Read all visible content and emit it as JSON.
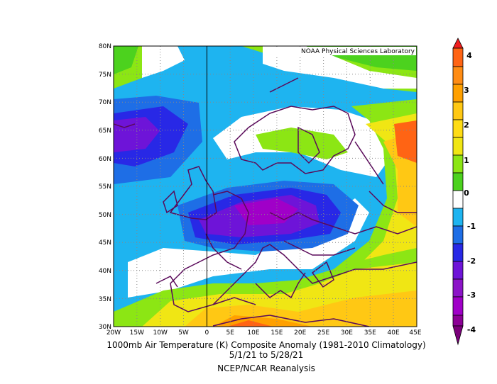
{
  "map": {
    "credit": "NOAA Physical Sciences Laboratory",
    "lon_range": [
      -20,
      45
    ],
    "lat_range": [
      30,
      80
    ],
    "lat_ticks": [
      "80N",
      "75N",
      "70N",
      "65N",
      "60N",
      "55N",
      "50N",
      "45N",
      "40N",
      "35N",
      "30N"
    ],
    "lon_ticks": [
      "20W",
      "15W",
      "10W",
      "5W",
      "0",
      "5E",
      "10E",
      "15E",
      "20E",
      "25E",
      "30E",
      "35E",
      "40E",
      "45E"
    ],
    "grid": "dotted"
  },
  "caption": {
    "line1": "1000mb Air Temperature (K) Composite Anomaly (1981-2010 Climatology)",
    "line2": "5/1/21  to 5/28/21",
    "line3": "NCEP/NCAR Reanalysis"
  },
  "colorbar": {
    "labels": [
      "4",
      "3",
      "2",
      "1",
      "0",
      "-1",
      "-2",
      "-3",
      "-4"
    ],
    "colors": [
      "#7a007a",
      "#a000c8",
      "#6e14d8",
      "#2828e6",
      "#1e6ee6",
      "#1eb4f0",
      "#ffffff",
      "#ffffff",
      "#8ce614",
      "#4cd21e",
      "#f0e614",
      "#ffc814",
      "#ffa000",
      "#ff6414",
      "#f01e1e"
    ]
  },
  "chart_data": {
    "type": "heatmap",
    "variable": "1000mb Air Temperature (K) Composite Anomaly",
    "scale": [
      -4,
      4
    ],
    "levels": [
      -4,
      -3.5,
      -3,
      -2.5,
      -2,
      -1.5,
      -1,
      -0.5,
      0,
      0.5,
      1,
      1.5,
      2,
      2.5,
      3,
      3.5,
      4
    ]
  }
}
